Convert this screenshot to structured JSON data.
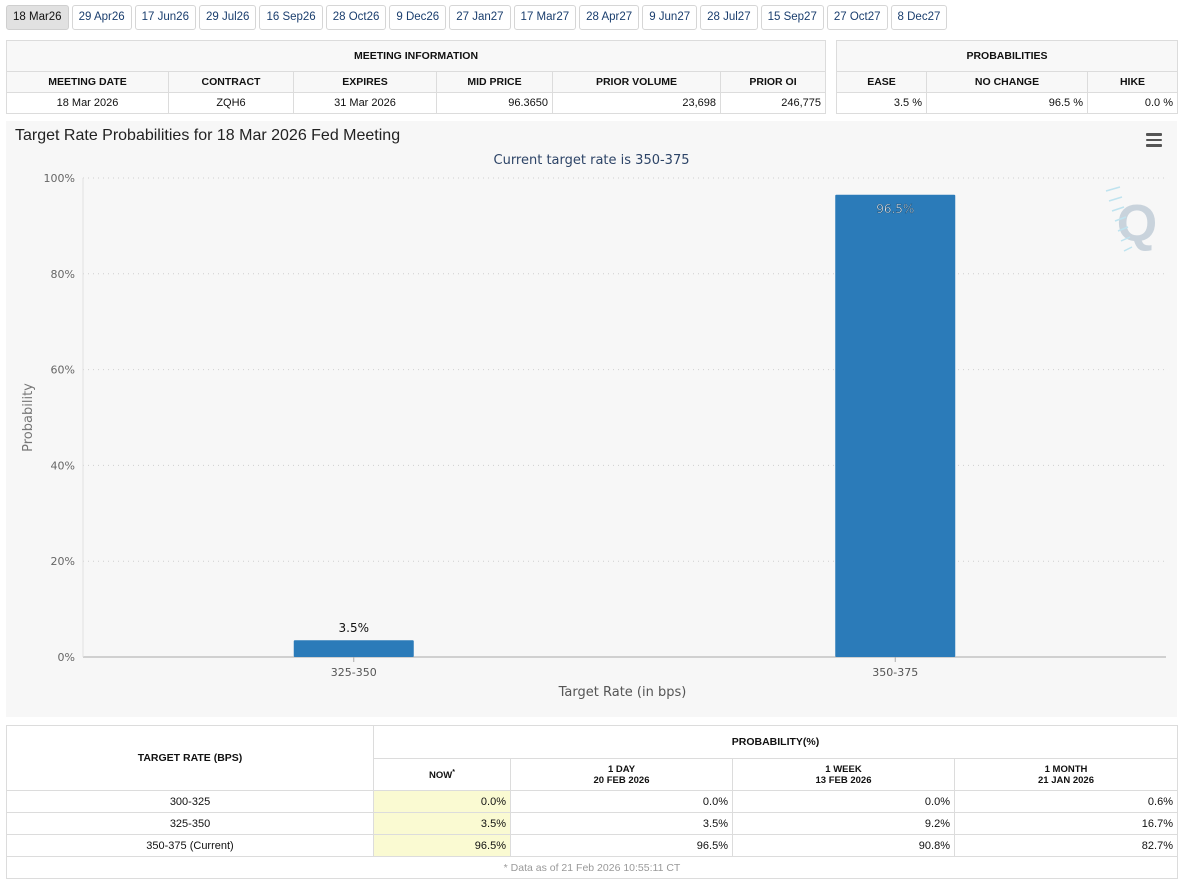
{
  "tabs": [
    "18 Mar26",
    "29 Apr26",
    "17 Jun26",
    "29 Jul26",
    "16 Sep26",
    "28 Oct26",
    "9 Dec26",
    "27 Jan27",
    "17 Mar27",
    "28 Apr27",
    "9 Jun27",
    "28 Jul27",
    "15 Sep27",
    "27 Oct27",
    "8 Dec27"
  ],
  "active_tab": 0,
  "meeting_info": {
    "title": "MEETING INFORMATION",
    "headers": [
      "MEETING DATE",
      "CONTRACT",
      "EXPIRES",
      "MID PRICE",
      "PRIOR VOLUME",
      "PRIOR OI"
    ],
    "values": [
      "18 Mar 2026",
      "ZQH6",
      "31 Mar 2026",
      "96.3650",
      "23,698",
      "246,775"
    ]
  },
  "probabilities": {
    "title": "PROBABILITIES",
    "headers": [
      "EASE",
      "NO CHANGE",
      "HIKE"
    ],
    "values": [
      "3.5 %",
      "96.5 %",
      "0.0 %"
    ]
  },
  "chart": {
    "title": "Target Rate Probabilities for 18 Mar 2026 Fed Meeting",
    "menu_icon": "hamburger-menu-icon",
    "watermark": "Q",
    "bar_color": "#2b7bb9"
  },
  "chart_data": {
    "type": "bar",
    "title": "Target Rate Probabilities for 18 Mar 2026 Fed Meeting",
    "subtitle": "Current target rate is 350-375",
    "categories": [
      "325-350",
      "350-375"
    ],
    "values": [
      3.5,
      96.5
    ],
    "data_labels": [
      "3.5%",
      "96.5%"
    ],
    "xlabel": "Target Rate (in bps)",
    "ylabel": "Probability",
    "ylim": [
      0,
      100
    ],
    "yticks": [
      0,
      20,
      40,
      60,
      80,
      100
    ],
    "ytick_labels": [
      "0%",
      "20%",
      "40%",
      "60%",
      "80%",
      "100%"
    ],
    "grid": true
  },
  "rate_table": {
    "col_target": "TARGET RATE (BPS)",
    "col_prob": "PROBABILITY(%)",
    "now_label": "NOW",
    "now_mark": "*",
    "periods": [
      {
        "label": "1 DAY",
        "date": "20 FEB 2026"
      },
      {
        "label": "1 WEEK",
        "date": "13 FEB 2026"
      },
      {
        "label": "1 MONTH",
        "date": "21 JAN 2026"
      }
    ],
    "rows": [
      {
        "rate": "300-325",
        "now": "0.0%",
        "day": "0.0%",
        "week": "0.0%",
        "month": "0.6%"
      },
      {
        "rate": "325-350",
        "now": "3.5%",
        "day": "3.5%",
        "week": "9.2%",
        "month": "16.7%"
      },
      {
        "rate": "350-375 (Current)",
        "now": "96.5%",
        "day": "96.5%",
        "week": "90.8%",
        "month": "82.7%"
      }
    ],
    "footnote": "* Data as of 21 Feb 2026 10:55:11 CT"
  }
}
